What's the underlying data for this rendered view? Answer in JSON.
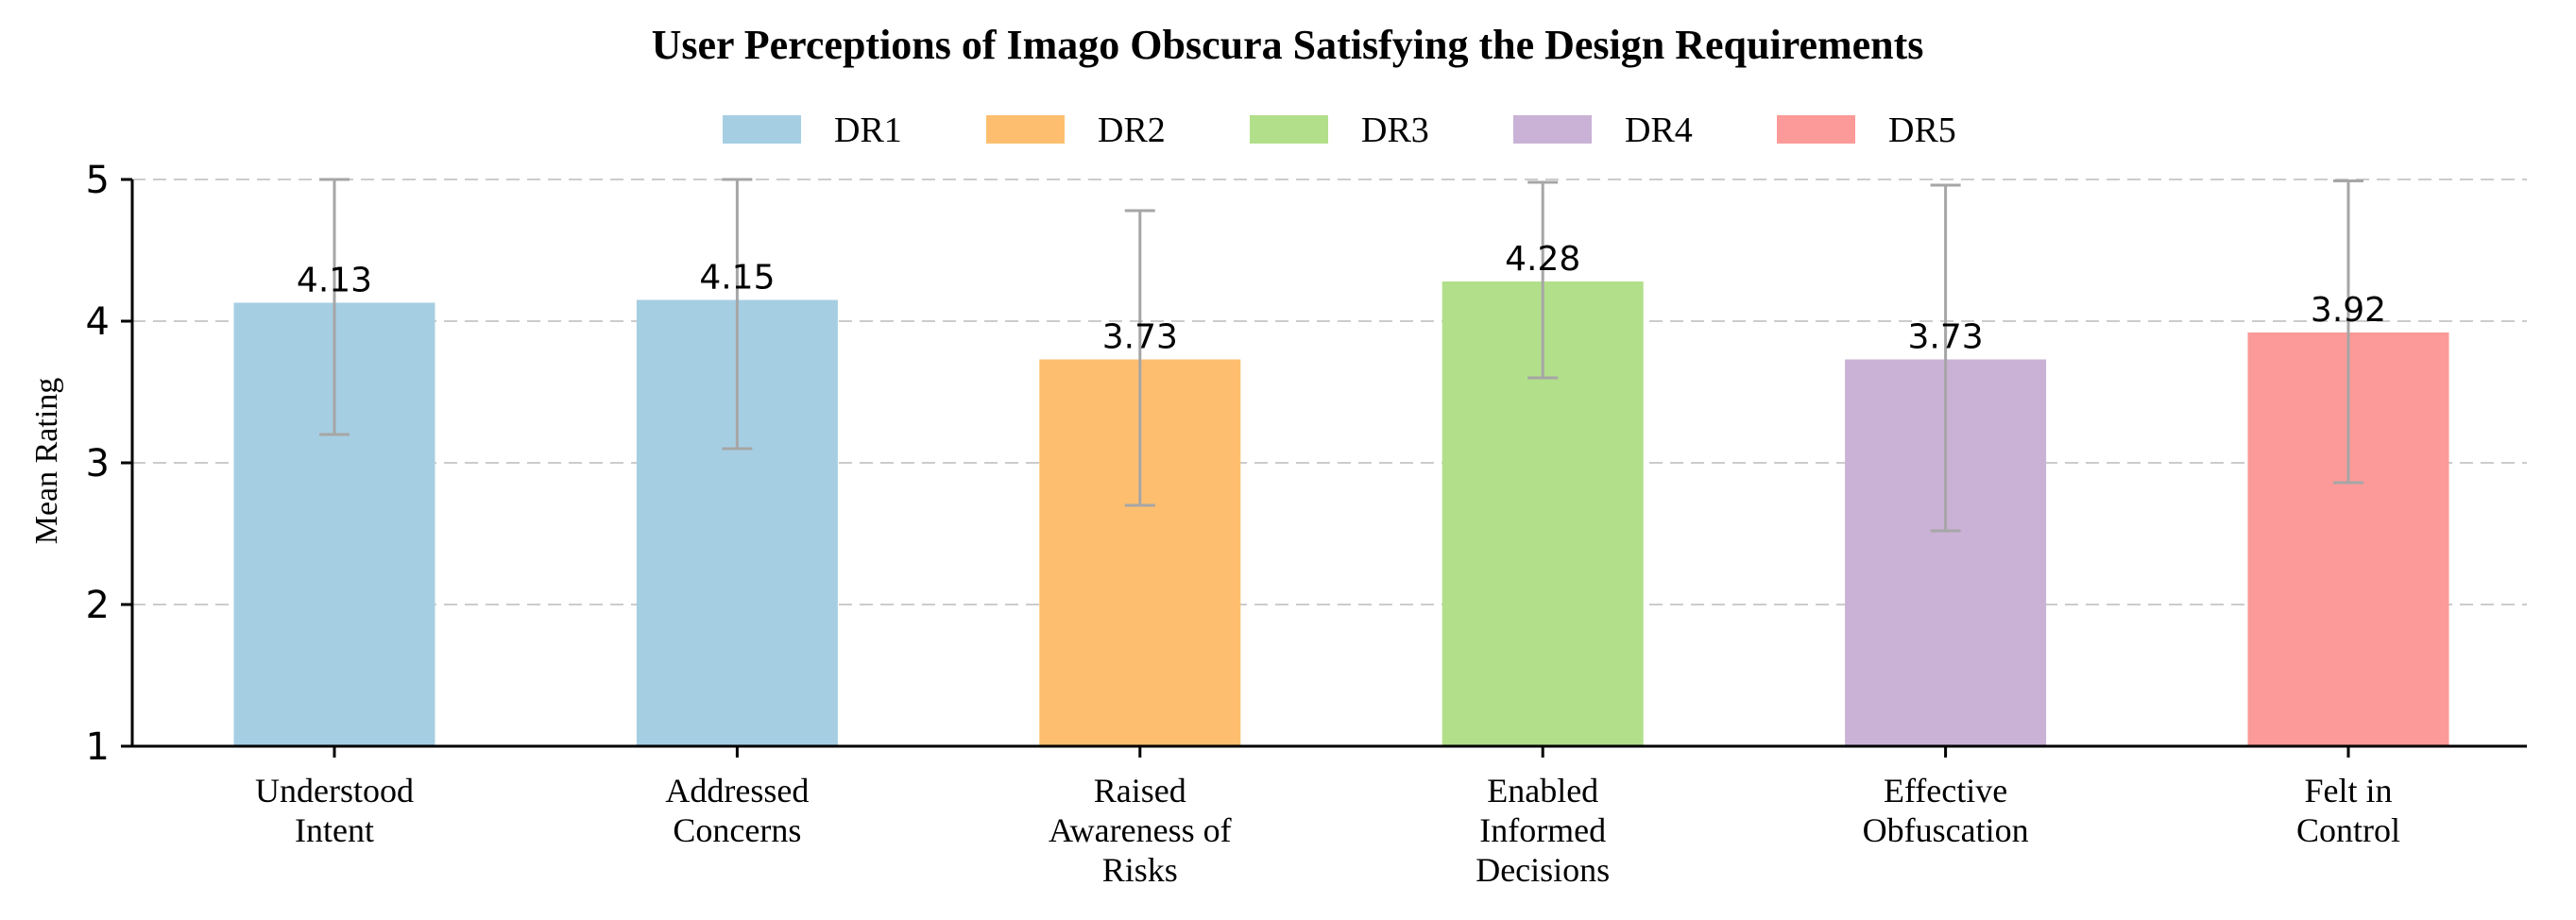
{
  "chart_data": {
    "type": "bar",
    "title": "User Perceptions of Imago Obscura Satisfying the Design Requirements",
    "ylabel": "Mean Rating",
    "xlabel": "",
    "ylim": [
      1,
      5
    ],
    "yticks": [
      1,
      2,
      3,
      4,
      5
    ],
    "grid": "horizontal dashed",
    "legend_position": "top-center",
    "categories": [
      [
        "Understood",
        "Intent"
      ],
      [
        "Addressed",
        "Concerns"
      ],
      [
        "Raised",
        "Awareness of",
        "Risks"
      ],
      [
        "Enabled",
        "Informed",
        "Decisions"
      ],
      [
        "Effective",
        "Obfuscation"
      ],
      [
        "Felt in",
        "Control"
      ]
    ],
    "values": [
      4.13,
      4.15,
      3.73,
      4.28,
      3.73,
      3.92
    ],
    "value_labels": [
      "4.13",
      "4.15",
      "3.73",
      "4.28",
      "3.73",
      "3.92"
    ],
    "error_low": [
      3.2,
      3.1,
      2.7,
      3.6,
      2.52,
      2.86
    ],
    "error_high": [
      5.0,
      5.0,
      4.78,
      4.98,
      4.96,
      4.99
    ],
    "bar_groups": [
      "DR1",
      "DR1",
      "DR2",
      "DR3",
      "DR4",
      "DR5"
    ],
    "legend": [
      {
        "label": "DR1",
        "color": "#a6cee3"
      },
      {
        "label": "DR2",
        "color": "#fdbf6f"
      },
      {
        "label": "DR3",
        "color": "#b2df8a"
      },
      {
        "label": "DR4",
        "color": "#cab2d6"
      },
      {
        "label": "DR5",
        "color": "#fb9a99"
      }
    ],
    "colors": {
      "grid": "#cccccc",
      "error_bar": "#a6a6a6",
      "axis": "#000000"
    }
  }
}
